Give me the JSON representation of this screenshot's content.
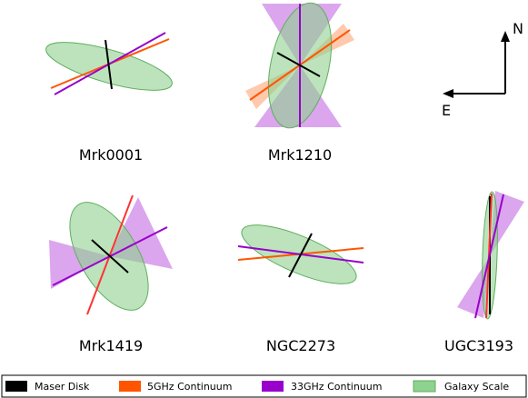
{
  "compass": {
    "north": "N",
    "east": "E"
  },
  "galaxies": [
    {
      "name": "Mrk0001"
    },
    {
      "name": "Mrk1210"
    },
    {
      "name": "Mrk1419"
    },
    {
      "name": "NGC2273"
    },
    {
      "name": "UGC3193"
    }
  ],
  "legend": [
    {
      "label": "Maser Disk",
      "color": "#000000"
    },
    {
      "label": "5GHz Continuum",
      "color": "#ff5500"
    },
    {
      "label": "33GHz Continuum",
      "color": "#9900cc"
    },
    {
      "label": "Galaxy Scale",
      "color": "#8fd18f"
    }
  ]
}
